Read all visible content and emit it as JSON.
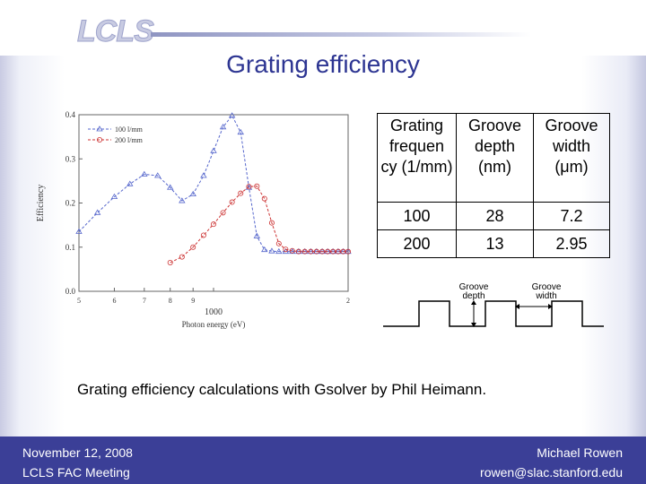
{
  "logo": {
    "text": "LCLS"
  },
  "slide": {
    "title": "Grating efficiency"
  },
  "chart_data": {
    "type": "line",
    "xlabel": "Photon energy (eV)",
    "ylabel": "Efficiency",
    "x_ticks": [
      "5",
      "6",
      "7",
      "8",
      "9",
      "1000",
      "2"
    ],
    "y_ticks": [
      "0.0",
      "0.1",
      "0.2",
      "0.3",
      "0.4"
    ],
    "xlim": [
      500,
      2000
    ],
    "ylim": [
      0,
      0.4
    ],
    "x_scale": "log",
    "legend": "top-left",
    "series": [
      {
        "name": "100 l/mm",
        "color": "#5566cc",
        "marker": "triangle",
        "x": [
          500,
          550,
          600,
          650,
          700,
          750,
          800,
          850,
          900,
          950,
          1000,
          1050,
          1100,
          1150,
          1200,
          1250,
          1300,
          1350,
          1400,
          1450,
          1500,
          1550,
          1600,
          1650,
          1700,
          1750,
          1800,
          1850,
          1900,
          1950,
          2000
        ],
        "y": [
          0.135,
          0.178,
          0.214,
          0.243,
          0.265,
          0.262,
          0.235,
          0.205,
          0.22,
          0.262,
          0.318,
          0.372,
          0.398,
          0.36,
          0.235,
          0.125,
          0.094,
          0.091,
          0.09,
          0.09,
          0.09,
          0.09,
          0.09,
          0.09,
          0.09,
          0.09,
          0.09,
          0.09,
          0.09,
          0.09,
          0.09
        ]
      },
      {
        "name": "200 l/mm",
        "color": "#cc3333",
        "marker": "circle",
        "x": [
          800,
          850,
          900,
          950,
          1000,
          1050,
          1100,
          1150,
          1200,
          1250,
          1300,
          1350,
          1400,
          1450,
          1500,
          1550,
          1600,
          1650,
          1700,
          1750,
          1800,
          1850,
          1900,
          1950,
          2000
        ],
        "y": [
          0.065,
          0.078,
          0.1,
          0.127,
          0.152,
          0.178,
          0.202,
          0.222,
          0.237,
          0.238,
          0.21,
          0.155,
          0.108,
          0.095,
          0.092,
          0.09,
          0.09,
          0.09,
          0.09,
          0.09,
          0.09,
          0.09,
          0.09,
          0.09,
          0.09
        ]
      }
    ]
  },
  "table": {
    "headers": [
      "Grating frequen cy (1/mm)",
      "Groove depth (nm)",
      "Groove width (μm)"
    ],
    "rows": [
      [
        "100",
        "28",
        "7.2"
      ],
      [
        "200",
        "13",
        "2.95"
      ]
    ]
  },
  "groove_diagram": {
    "depth_label": "Groove depth",
    "width_label": "Groove width"
  },
  "caption": "Grating efficiency calculations with Gsolver by Phil Heimann.",
  "footer": {
    "date": "November 12, 2008",
    "meeting": "LCLS FAC Meeting",
    "author": "Michael Rowen",
    "email": "rowen@slac.stanford.edu"
  },
  "colors": {
    "brand": "#3b3f97",
    "title": "#2d3592"
  }
}
